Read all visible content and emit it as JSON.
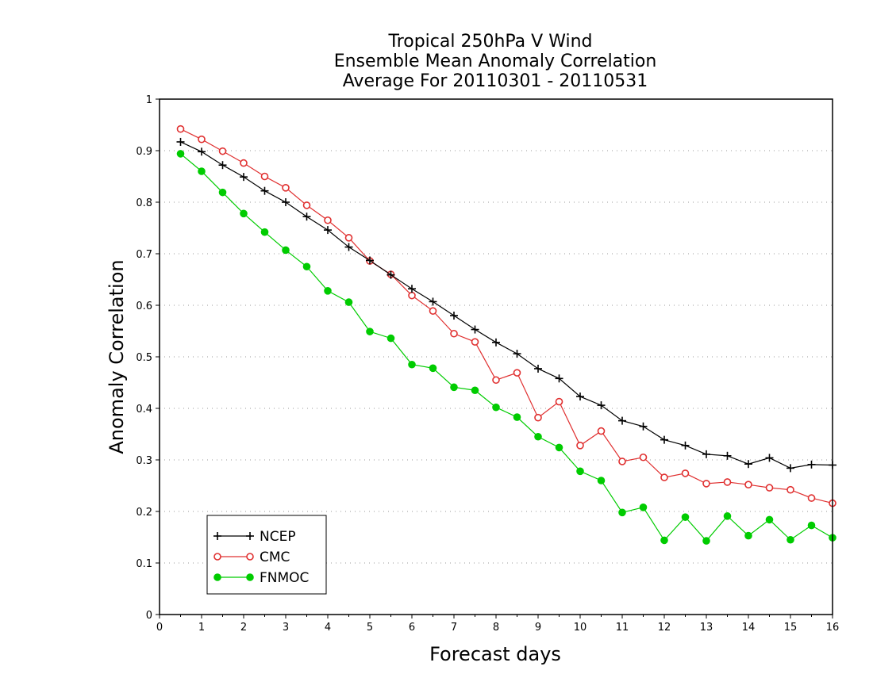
{
  "chart_data": {
    "type": "line",
    "title_lines": [
      "Tropical 250hPa V Wind",
      "Ensemble Mean Anomaly Correlation",
      "Average For 20110301 - 20110531"
    ],
    "xlabel": "Forecast days",
    "ylabel": "Anomaly Correlation",
    "xlim": [
      0,
      16
    ],
    "ylim": [
      0,
      1
    ],
    "xticks": [
      "0",
      "1",
      "2",
      "3",
      "4",
      "5",
      "6",
      "7",
      "8",
      "9",
      "10",
      "11",
      "12",
      "13",
      "14",
      "15",
      "16"
    ],
    "yticks": [
      "0",
      "0.1",
      "0.2",
      "0.3",
      "0.4",
      "0.5",
      "0.6",
      "0.7",
      "0.8",
      "0.9",
      "1"
    ],
    "grid": "horizontal dotted",
    "legend_position": "bottom-left",
    "x": [
      0.5,
      1,
      1.5,
      2,
      2.5,
      3,
      3.5,
      4,
      4.5,
      5,
      5.5,
      6,
      6.5,
      7,
      7.5,
      8,
      8.5,
      9,
      9.5,
      10,
      10.5,
      11,
      11.5,
      12,
      12.5,
      13,
      13.5,
      14,
      14.5,
      15,
      15.5,
      16
    ],
    "series": [
      {
        "name": "NCEP",
        "color": "#000000",
        "marker": "plus",
        "values": [
          0.917,
          0.898,
          0.872,
          0.849,
          0.822,
          0.8,
          0.772,
          0.746,
          0.713,
          0.687,
          0.659,
          0.632,
          0.607,
          0.58,
          0.553,
          0.528,
          0.506,
          0.477,
          0.458,
          0.423,
          0.406,
          0.376,
          0.365,
          0.339,
          0.328,
          0.311,
          0.308,
          0.292,
          0.304,
          0.284,
          0.291,
          0.29
        ]
      },
      {
        "name": "CMC",
        "color": "#e03030",
        "marker": "open-circle",
        "values": [
          0.942,
          0.922,
          0.899,
          0.876,
          0.85,
          0.828,
          0.794,
          0.765,
          0.731,
          0.686,
          0.66,
          0.619,
          0.589,
          0.545,
          0.529,
          0.455,
          0.469,
          0.382,
          0.413,
          0.328,
          0.356,
          0.297,
          0.305,
          0.266,
          0.274,
          0.254,
          0.257,
          0.252,
          0.246,
          0.242,
          0.226,
          0.216
        ]
      },
      {
        "name": "FNMOC",
        "color": "#00cc00",
        "marker": "filled-circle",
        "values": [
          0.894,
          0.86,
          0.819,
          0.778,
          0.742,
          0.707,
          0.675,
          0.628,
          0.606,
          0.549,
          0.536,
          0.485,
          0.478,
          0.441,
          0.435,
          0.402,
          0.383,
          0.345,
          0.324,
          0.278,
          0.26,
          0.198,
          0.208,
          0.144,
          0.189,
          0.143,
          0.191,
          0.153,
          0.184,
          0.145,
          0.173,
          0.149
        ]
      }
    ]
  }
}
